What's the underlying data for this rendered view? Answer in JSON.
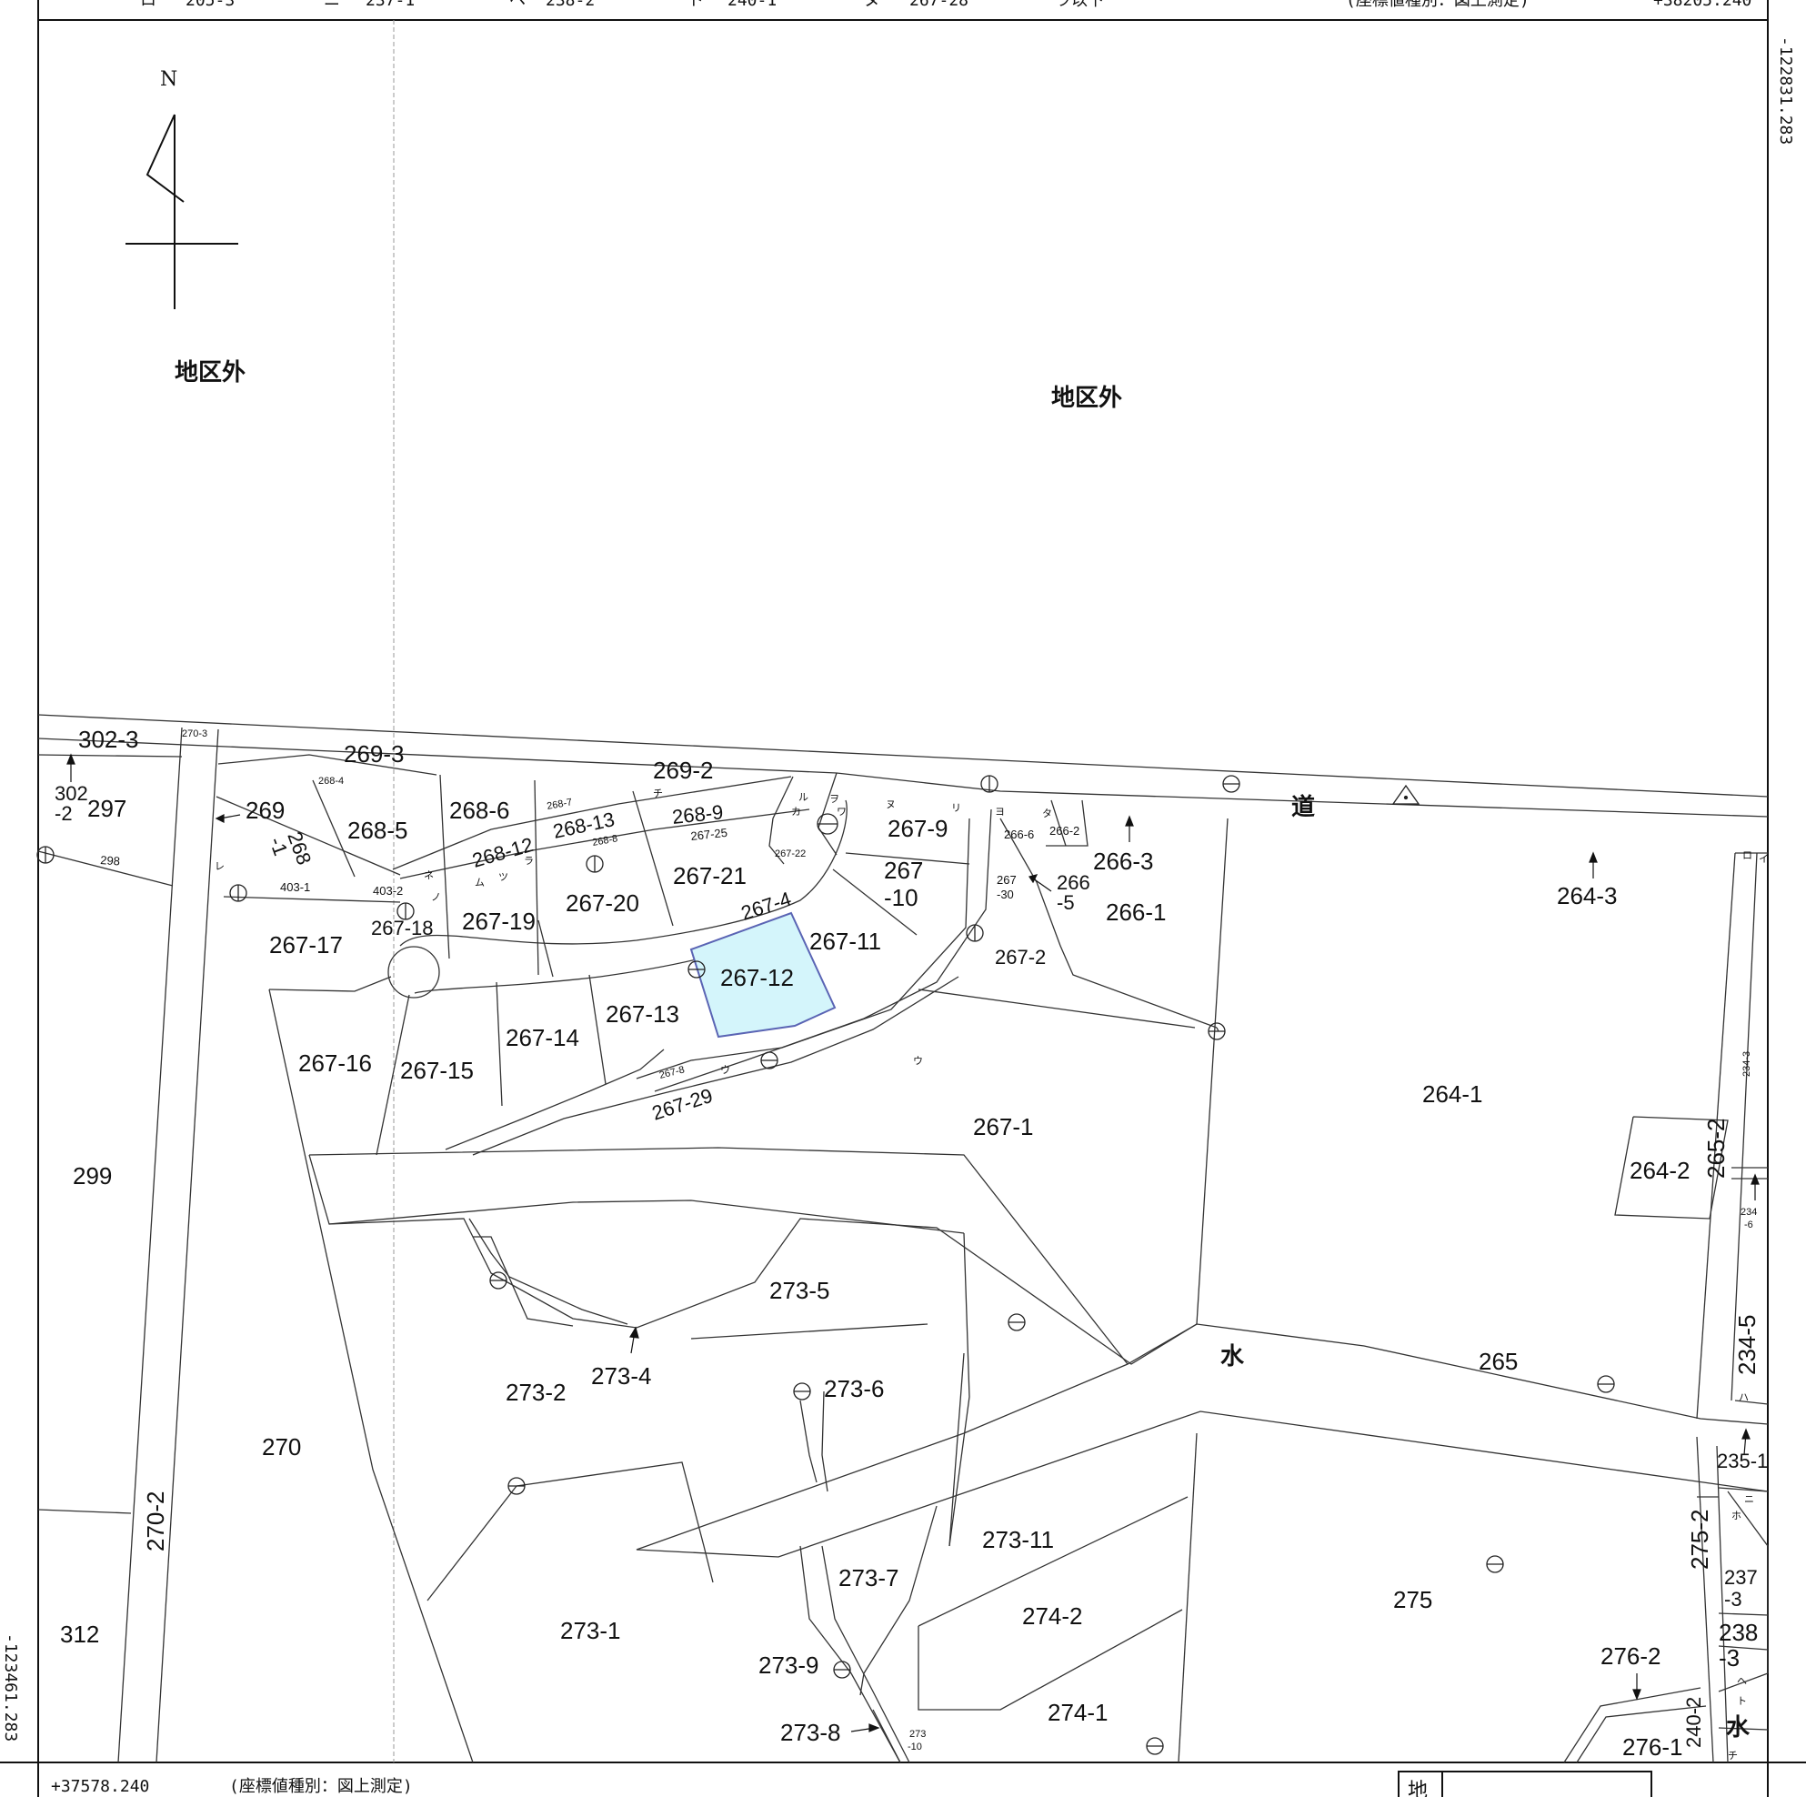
{
  "header_fragment": {
    "items": [
      "ロ",
      "205-3",
      "ニ",
      "237-1",
      "ヘ",
      "238-2",
      "ト",
      "240-1",
      "ヌ",
      "267-28",
      "ラ以下"
    ],
    "coord_type": "(座標値種別：図上測定)",
    "x_coord": "+38205.240"
  },
  "coords": {
    "right_top": "-122831.283",
    "left_bottom": "-123461.283",
    "bottom_left": "+37578.240",
    "coord_type": "(座標値種別：図上測定)"
  },
  "north_label": "N",
  "outside_area_label": "地区外",
  "road_label": "道",
  "water_label": "水",
  "legend_corner": "地",
  "parcels": {
    "p302_3": "302-3",
    "p270_3": "270-3",
    "p269_3": "269-3",
    "p269_2": "269-2",
    "p302_2a": "302",
    "p302_2b": "-2",
    "p297": "297",
    "p269": "269",
    "p268_1a": "268",
    "p268_1b": "-1",
    "p268_4": "268-4",
    "p268_5": "268-5",
    "p268_6": "268-6",
    "p268_7": "268-7",
    "p268_13": "268-13",
    "p268_12": "268-12",
    "p268_8": "268-8",
    "p268_9": "268-9",
    "p267_25": "267-25",
    "p267_9": "267-9",
    "p266_6": "266-6",
    "p266_2": "266-2",
    "p266_3": "266-3",
    "p264_3": "264-3",
    "p298": "298",
    "p403_1": "403-1",
    "p403_2": "403-2",
    "p267_18": "267-18",
    "p267_19": "267-19",
    "p267_20": "267-20",
    "p267_21": "267-21",
    "p267_22": "267-22",
    "p267_10a": "267",
    "p267_10b": "-10",
    "p267_30a": "267",
    "p267_30b": "-30",
    "p266_5a": "266",
    "p266_5b": "-5",
    "p266_1": "266-1",
    "p267_17": "267-17",
    "p267_4": "267-4",
    "p267_11": "267-11",
    "p267_12": "267-12",
    "p267_2": "267-2",
    "p267_13": "267-13",
    "p267_14": "267-14",
    "p267_16": "267-16",
    "p267_15": "267-15",
    "p267_8": "267-8",
    "p267_29": "267-29",
    "p267_1": "267-1",
    "p264_1": "264-1",
    "p234_3": "234-3",
    "p265_2": "265-2",
    "p264_2": "264-2",
    "p234_6a": "234",
    "p234_6b": "-6",
    "p299": "299",
    "p273_5": "273-5",
    "p234_5": "234-5",
    "p265": "265",
    "p273_4": "273-4",
    "p273_2": "273-2",
    "p273_6": "273-6",
    "p270": "270",
    "p235_1": "235-1",
    "p270_2": "270-2",
    "p273_11": "273-11",
    "p275_2": "275-2",
    "p273_7": "273-7",
    "p237_3a": "237",
    "p237_3b": "-3",
    "p275": "275",
    "p274_2": "274-2",
    "p312": "312",
    "p273_1": "273-1",
    "p238_3a": "238",
    "p238_3b": "-3",
    "p276_2": "276-2",
    "p273_9": "273-9",
    "p274_1": "274-1",
    "p273_8": "273-8",
    "p273_10a": "273",
    "p273_10b": "-10",
    "p276_1": "276-1",
    "p240_2": "240-2"
  },
  "kana_marks": {
    "k_chi": "チ",
    "k_ru": "ル",
    "k_ka": "カ",
    "k_wo": "ヲ",
    "k_wa": "ワ",
    "k_nu": "ヌ",
    "k_ri": "リ",
    "k_yo": "ヨ",
    "k_ta": "タ",
    "k_re": "レ",
    "k_ne": "ネ",
    "k_no": "ノ",
    "k_mu": "ム",
    "k_tsu": "ツ",
    "k_ra": "ラ",
    "k_u": "ウ",
    "k_ro": "ロ",
    "k_i": "イ",
    "k_ha": "ハ",
    "k_ni": "ニ",
    "k_ho": "ホ",
    "k_he": "ヘ",
    "k_to": "ト",
    "k_chi2": "チ",
    "k_u2": "ウ"
  },
  "colors": {
    "highlight_fill": "#d4f5fb",
    "highlight_stroke": "#5a64b4",
    "line": "#333333"
  }
}
